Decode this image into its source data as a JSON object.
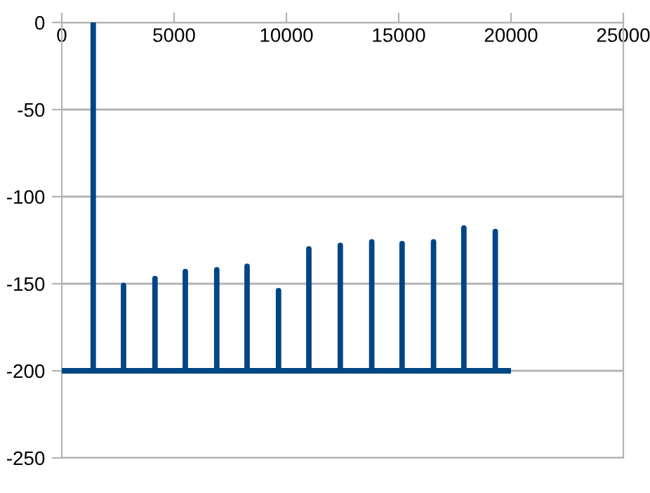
{
  "chart_data": {
    "type": "line",
    "series": [
      {
        "color": "#004586",
        "x": [
          0,
          1400,
          1400,
          1400,
          2750,
          2750,
          2750,
          4150,
          4150,
          4150,
          5500,
          5500,
          5500,
          6900,
          6900,
          6900,
          8250,
          8250,
          8250,
          9650,
          9650,
          9650,
          11000,
          11000,
          11000,
          12400,
          12400,
          12400,
          13800,
          13800,
          13800,
          15150,
          15150,
          15150,
          16550,
          16550,
          16550,
          17900,
          17900,
          17900,
          19300,
          19300,
          19300,
          20000
        ],
        "values": [
          -200,
          -200,
          0,
          -200,
          -200,
          -151,
          -200,
          -200,
          -147,
          -200,
          -200,
          -143,
          -200,
          -200,
          -142,
          -200,
          -200,
          -140,
          -200,
          -200,
          -154,
          -200,
          -200,
          -130,
          -200,
          -200,
          -128,
          -200,
          -200,
          -126,
          -200,
          -200,
          -127,
          -200,
          -200,
          -126,
          -200,
          -200,
          -118,
          -200,
          -200,
          -120,
          -200,
          -200
        ]
      }
    ],
    "xlim": [
      0,
      25000
    ],
    "xticks": [
      0,
      5000,
      10000,
      15000,
      20000,
      25000
    ],
    "ylim": [
      -250,
      0
    ],
    "yticks": [
      -250,
      -200,
      -150,
      -100,
      -50,
      0
    ],
    "grid": "y",
    "legend": false,
    "marker": "none",
    "line_style": "solid"
  }
}
